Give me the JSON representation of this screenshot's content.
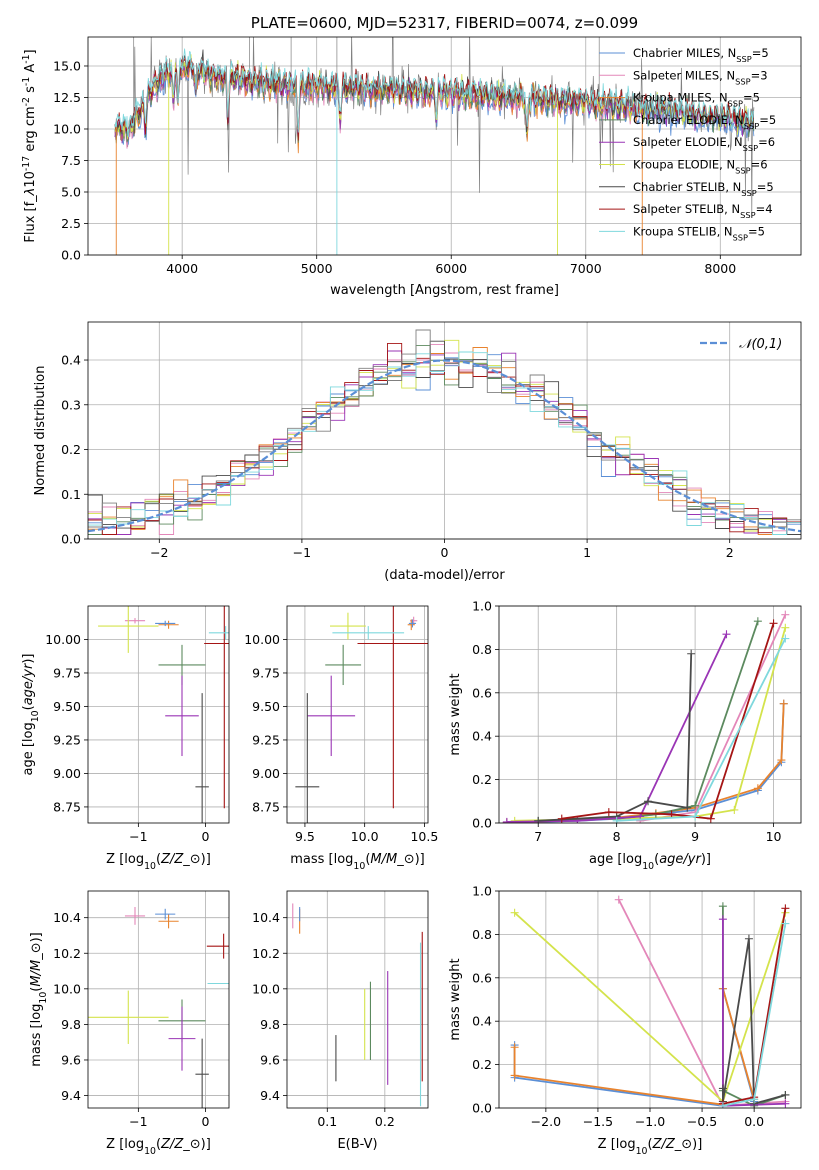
{
  "chart_data": [
    {
      "id": "spectrum",
      "type": "line",
      "title": "PLATE=0600, MJD=52317, FIBERID=0074, z=0.099",
      "xlabel": "wavelength [Angstrom, rest frame]",
      "ylabel": "Flux [f$_\\lambda$10$^{-17}$ erg cm$^{-2}$ s$^{-1}$ A$^{-1}$]",
      "xlim": [
        3300,
        8600
      ],
      "ylim": [
        0,
        17.3
      ],
      "xticks": [
        4000,
        5000,
        6000,
        7000,
        8000
      ],
      "yticks": [
        0.0,
        2.5,
        5.0,
        7.5,
        10.0,
        12.5,
        15.0
      ],
      "legend_position": "top-right",
      "series": [
        {
          "name": "Chabrier MILES, N$_{SSP}$=5",
          "color": "#5b8fd6"
        },
        {
          "name": "Salpeter MILES, N$_{SSP}$=3",
          "color": "#e387b9"
        },
        {
          "name": "Kroupa MILES, N$_{SSP}$=5",
          "color": "#e8832e"
        },
        {
          "name": "Chabrier ELODIE, N$_{SSP}$=5",
          "color": "#5c8a5f"
        },
        {
          "name": "Salpeter ELODIE, N$_{SSP}$=6",
          "color": "#9a35b5"
        },
        {
          "name": "Kroupa ELODIE, N$_{SSP}$=6",
          "color": "#d4e34c"
        },
        {
          "name": "Chabrier STELIB, N$_{SSP}$=5",
          "color": "#4a4a4a"
        },
        {
          "name": "Salpeter STELIB, N$_{SSP}$=4",
          "color": "#a51515"
        },
        {
          "name": "Kroupa STELIB, N$_{SSP}$=5",
          "color": "#7fd8dd"
        }
      ],
      "data_color": "#808080",
      "continuum": {
        "x": [
          3500,
          3600,
          3800,
          3950,
          4100,
          4300,
          4500,
          4800,
          5000,
          5300,
          5600,
          6000,
          6300,
          6600,
          7000,
          7400,
          7800,
          8200
        ],
        "y": [
          10.2,
          9.8,
          13.5,
          15.0,
          14.7,
          14.0,
          13.8,
          13.5,
          13.4,
          13.2,
          13.0,
          12.9,
          12.6,
          12.4,
          12.1,
          11.6,
          11.1,
          10.5
        ]
      }
    },
    {
      "id": "residuals",
      "type": "histogram",
      "xlabel": "(data-model)/error",
      "ylabel": "Normed distribution",
      "xlim": [
        -2.5,
        2.5
      ],
      "ylim": [
        0,
        0.485
      ],
      "xticks": [
        -2,
        -1,
        0,
        1,
        2
      ],
      "yticks": [
        0.0,
        0.1,
        0.2,
        0.3,
        0.4
      ],
      "legend_label": "$\\mathcal{N}(0,1)$",
      "legend_position": "top-right",
      "gaussian_color": "#5b8fd6",
      "bin_width": 0.1
    },
    {
      "id": "age-vs-Z",
      "type": "errorbar",
      "xlabel": "Z [log$_{10}$($Z/Z_\\odot$)]",
      "ylabel": "age  [log$_{10}$($age/yr$)]",
      "xlim": [
        -1.75,
        0.35
      ],
      "ylim": [
        8.63,
        10.25
      ],
      "xticks": [
        -1,
        0
      ],
      "yticks": [
        8.75,
        9.0,
        9.25,
        9.5,
        9.75,
        10.0
      ],
      "points": [
        {
          "x": -1.05,
          "y": 10.14,
          "xerr": 0.15,
          "yerr": 0.02,
          "color": "#e387b9"
        },
        {
          "x": -0.55,
          "y": 10.11,
          "xerr": 0.15,
          "yerr": 0.03,
          "color": "#e8832e"
        },
        {
          "x": -0.6,
          "y": 10.12,
          "xerr": 0.15,
          "yerr": 0.02,
          "color": "#5b8fd6"
        },
        {
          "x": -1.15,
          "y": 10.1,
          "xerr": 0.45,
          "yerr": 0.2,
          "color": "#d4e34c"
        },
        {
          "x": -0.35,
          "y": 9.81,
          "xerr": 0.35,
          "yerr": 0.15,
          "color": "#5c8a5f"
        },
        {
          "x": -0.35,
          "y": 9.43,
          "xerr": 0.25,
          "yerr": 0.3,
          "color": "#9a35b5"
        },
        {
          "x": -0.05,
          "y": 8.9,
          "xerr": 0.1,
          "yerr": 0.7,
          "color": "#4a4a4a"
        },
        {
          "x": 0.28,
          "y": 9.97,
          "xerr": 0.3,
          "yerr": 1.23,
          "color": "#a51515"
        },
        {
          "x": 0.3,
          "y": 10.05,
          "xerr": 0.25,
          "yerr": 0.05,
          "color": "#7fd8dd"
        }
      ]
    },
    {
      "id": "age-vs-mass",
      "type": "errorbar",
      "xlabel": "mass [log$_{10}$($M/M_\\odot$)]",
      "ylabel": "",
      "xlim": [
        9.35,
        10.53
      ],
      "ylim": [
        8.63,
        10.25
      ],
      "xticks": [
        9.5,
        10.0,
        10.5
      ],
      "yticks": [
        8.75,
        9.0,
        9.25,
        9.5,
        9.75,
        10.0
      ],
      "points": [
        {
          "x": 10.41,
          "y": 10.14,
          "xerr": 0.03,
          "yerr": 0.03,
          "color": "#e387b9"
        },
        {
          "x": 10.39,
          "y": 10.11,
          "xerr": 0.03,
          "yerr": 0.04,
          "color": "#e8832e"
        },
        {
          "x": 10.4,
          "y": 10.12,
          "xerr": 0.03,
          "yerr": 0.03,
          "color": "#5b8fd6"
        },
        {
          "x": 9.86,
          "y": 10.1,
          "xerr": 0.15,
          "yerr": 0.1,
          "color": "#d4e34c"
        },
        {
          "x": 9.82,
          "y": 9.81,
          "xerr": 0.15,
          "yerr": 0.15,
          "color": "#5c8a5f"
        },
        {
          "x": 9.72,
          "y": 9.43,
          "xerr": 0.2,
          "yerr": 0.3,
          "color": "#9a35b5"
        },
        {
          "x": 9.52,
          "y": 8.9,
          "xerr": 0.1,
          "yerr": 0.7,
          "color": "#4a4a4a"
        },
        {
          "x": 10.24,
          "y": 9.97,
          "xerr": 0.3,
          "yerr": 1.23,
          "color": "#a51515"
        },
        {
          "x": 10.03,
          "y": 10.05,
          "xerr": 0.3,
          "yerr": 0.05,
          "color": "#7fd8dd"
        }
      ]
    },
    {
      "id": "weight-vs-age",
      "type": "line",
      "xlabel": "age  [log$_{10}$($age/yr$)]",
      "ylabel": "mass weight",
      "xlim": [
        6.5,
        10.35
      ],
      "ylim": [
        0,
        1
      ],
      "xticks": [
        7,
        8,
        9,
        10
      ],
      "yticks": [
        0.0,
        0.2,
        0.4,
        0.6,
        0.8,
        1.0
      ],
      "series": [
        {
          "color": "#5b8fd6",
          "x": [
            6.6,
            7.5,
            8.0,
            8.5,
            9.0,
            9.8,
            10.1,
            10.13
          ],
          "y": [
            0.002,
            0.01,
            0.02,
            0.04,
            0.06,
            0.15,
            0.28,
            0.55
          ]
        },
        {
          "color": "#e8832e",
          "x": [
            6.6,
            7.5,
            8.0,
            8.5,
            9.0,
            9.8,
            10.1,
            10.13
          ],
          "y": [
            0.003,
            0.012,
            0.025,
            0.045,
            0.07,
            0.16,
            0.29,
            0.55
          ]
        },
        {
          "color": "#e387b9",
          "x": [
            8.3,
            9.0,
            10.15
          ],
          "y": [
            0.01,
            0.05,
            0.96
          ]
        },
        {
          "color": "#d4e34c",
          "x": [
            6.7,
            8.0,
            9.0,
            9.5,
            10.15
          ],
          "y": [
            0.01,
            0.02,
            0.03,
            0.06,
            0.9
          ]
        },
        {
          "color": "#5c8a5f",
          "x": [
            7.0,
            8.0,
            8.5,
            9.0,
            9.8
          ],
          "y": [
            0.01,
            0.02,
            0.04,
            0.08,
            0.93
          ]
        },
        {
          "color": "#9a35b5",
          "x": [
            6.6,
            7.5,
            8.3,
            9.4
          ],
          "y": [
            0.005,
            0.01,
            0.03,
            0.87
          ]
        },
        {
          "color": "#4a4a4a",
          "x": [
            7.0,
            8.0,
            8.4,
            8.9,
            8.95
          ],
          "y": [
            0.01,
            0.03,
            0.1,
            0.07,
            0.78
          ]
        },
        {
          "color": "#a51515",
          "x": [
            7.3,
            7.9,
            8.7,
            9.2,
            10.0
          ],
          "y": [
            0.02,
            0.05,
            0.04,
            0.02,
            0.92
          ]
        },
        {
          "color": "#7fd8dd",
          "x": [
            8.0,
            9.0,
            10.15
          ],
          "y": [
            0.01,
            0.03,
            0.85
          ]
        }
      ]
    },
    {
      "id": "mass-vs-Z",
      "type": "errorbar",
      "xlabel": "Z [log$_{10}$($Z/Z_\\odot$)]",
      "ylabel": "mass [log$_{10}$($M/M_\\odot$)]",
      "xlim": [
        -1.75,
        0.35
      ],
      "ylim": [
        9.33,
        10.55
      ],
      "xticks": [
        -1,
        0
      ],
      "yticks": [
        9.4,
        9.6,
        9.8,
        10.0,
        10.2,
        10.4
      ],
      "points": [
        {
          "x": -1.05,
          "y": 10.41,
          "xerr": 0.15,
          "yerr": 0.05,
          "color": "#e387b9"
        },
        {
          "x": -0.55,
          "y": 10.38,
          "xerr": 0.15,
          "yerr": 0.04,
          "color": "#e8832e"
        },
        {
          "x": -0.6,
          "y": 10.42,
          "xerr": 0.15,
          "yerr": 0.03,
          "color": "#5b8fd6"
        },
        {
          "x": -1.15,
          "y": 9.84,
          "xerr": 0.6,
          "yerr": 0.15,
          "color": "#d4e34c"
        },
        {
          "x": -0.35,
          "y": 9.82,
          "xerr": 0.35,
          "yerr": 0.12,
          "color": "#5c8a5f"
        },
        {
          "x": -0.35,
          "y": 9.72,
          "xerr": 0.2,
          "yerr": 0.18,
          "color": "#9a35b5"
        },
        {
          "x": -0.05,
          "y": 9.52,
          "xerr": 0.1,
          "yerr": 0.2,
          "color": "#4a4a4a"
        },
        {
          "x": 0.27,
          "y": 10.24,
          "xerr": 0.25,
          "yerr": 0.07,
          "color": "#a51515"
        },
        {
          "x": 0.28,
          "y": 10.03,
          "xerr": 0.25,
          "yerr": 0.0,
          "color": "#7fd8dd"
        }
      ]
    },
    {
      "id": "mass-vs-ebv",
      "type": "errorbar",
      "xlabel": "E(B-V)",
      "ylabel": "",
      "xlim": [
        0.03,
        0.275
      ],
      "ylim": [
        9.33,
        10.55
      ],
      "xticks": [
        0.1,
        0.2
      ],
      "yticks": [
        9.4,
        9.6,
        9.8,
        10.0,
        10.2,
        10.4
      ],
      "points": [
        {
          "x": 0.04,
          "y": 10.41,
          "xerr": 0.0,
          "yerr": 0.07,
          "color": "#e387b9"
        },
        {
          "x": 0.052,
          "y": 10.38,
          "xerr": 0.0,
          "yerr": 0.07,
          "color": "#e8832e"
        },
        {
          "x": 0.052,
          "y": 10.42,
          "xerr": 0.0,
          "yerr": 0.04,
          "color": "#5b8fd6"
        },
        {
          "x": 0.165,
          "y": 9.8,
          "xerr": 0.0,
          "yerr": 0.2,
          "color": "#d4e34c"
        },
        {
          "x": 0.175,
          "y": 9.82,
          "xerr": 0.0,
          "yerr": 0.22,
          "color": "#5c8a5f"
        },
        {
          "x": 0.205,
          "y": 9.78,
          "xerr": 0.0,
          "yerr": 0.32,
          "color": "#9a35b5"
        },
        {
          "x": 0.115,
          "y": 9.61,
          "xerr": 0.0,
          "yerr": 0.13,
          "color": "#4a4a4a"
        },
        {
          "x": 0.265,
          "y": 9.9,
          "xerr": 0.0,
          "yerr": 0.42,
          "color": "#a51515"
        },
        {
          "x": 0.262,
          "y": 9.8,
          "xerr": 0.0,
          "yerr": 0.46,
          "color": "#7fd8dd"
        }
      ]
    },
    {
      "id": "weight-vs-Z",
      "type": "line",
      "xlabel": "Z [log$_{10}$($Z/Z_\\odot$)]",
      "ylabel": "mass weight",
      "xlim": [
        -2.45,
        0.45
      ],
      "ylim": [
        0,
        1
      ],
      "xticks": [
        -2.0,
        -1.5,
        -1.0,
        -0.5,
        0.0
      ],
      "yticks": [
        0.0,
        0.2,
        0.4,
        0.6,
        0.8,
        1.0
      ],
      "series": [
        {
          "color": "#5b8fd6",
          "x": [
            -2.3,
            -2.3,
            -0.3,
            -0.3,
            0.0,
            0.0
          ],
          "y": [
            0.29,
            0.14,
            0.01,
            0.55,
            0.03,
            0.02
          ]
        },
        {
          "color": "#e8832e",
          "x": [
            -2.3,
            -2.3,
            -0.3,
            -0.3,
            0.0,
            0.0
          ],
          "y": [
            0.28,
            0.15,
            0.015,
            0.55,
            0.04,
            0.02
          ]
        },
        {
          "color": "#e387b9",
          "x": [
            -1.3,
            -0.3,
            0.3
          ],
          "y": [
            0.96,
            0.01,
            0.03
          ]
        },
        {
          "color": "#d4e34c",
          "x": [
            -2.3,
            -0.3,
            0.3
          ],
          "y": [
            0.9,
            0.03,
            0.9
          ]
        },
        {
          "color": "#5c8a5f",
          "x": [
            -0.3,
            -0.3,
            0.0,
            0.3
          ],
          "y": [
            0.93,
            0.08,
            0.01,
            0.06
          ]
        },
        {
          "color": "#9a35b5",
          "x": [
            -0.3,
            -0.3,
            0.3
          ],
          "y": [
            0.87,
            0.01,
            0.02
          ]
        },
        {
          "color": "#4a4a4a",
          "x": [
            -0.3,
            -0.3,
            -0.05,
            0.0,
            0.3
          ],
          "y": [
            0.09,
            0.03,
            0.78,
            0.02,
            0.06
          ]
        },
        {
          "color": "#a51515",
          "x": [
            -0.3,
            0.0,
            0.3
          ],
          "y": [
            0.02,
            0.05,
            0.92
          ]
        },
        {
          "color": "#7fd8dd",
          "x": [
            -0.3,
            0.0,
            0.3
          ],
          "y": [
            0.01,
            0.04,
            0.85
          ]
        }
      ]
    }
  ]
}
